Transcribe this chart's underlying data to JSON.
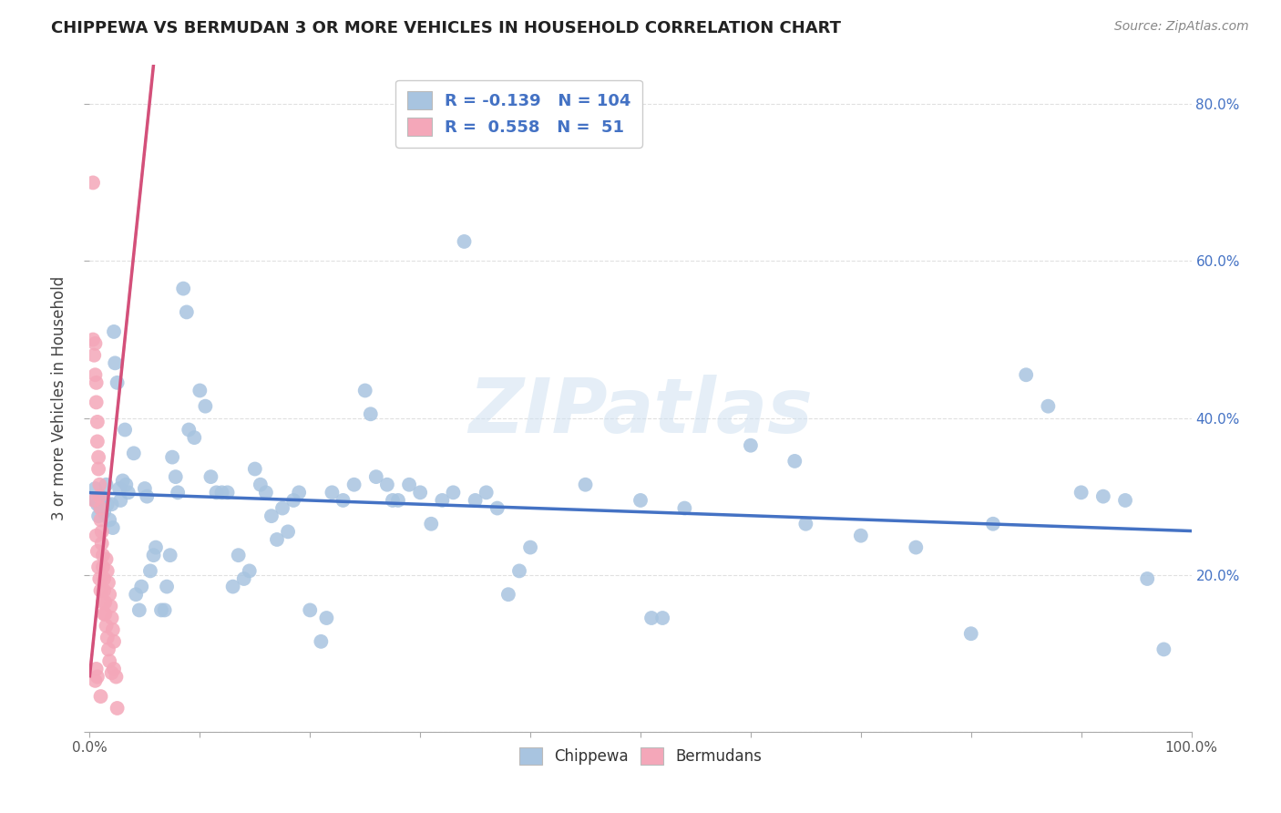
{
  "title": "CHIPPEWA VS BERMUDAN 3 OR MORE VEHICLES IN HOUSEHOLD CORRELATION CHART",
  "source": "Source: ZipAtlas.com",
  "ylabel": "3 or more Vehicles in Household",
  "watermark": "ZIPatlas",
  "legend_chippewa_r": "-0.139",
  "legend_chippewa_n": "104",
  "legend_bermudan_r": "0.558",
  "legend_bermudan_n": "51",
  "chippewa_color": "#a8c4e0",
  "bermudan_color": "#f4a7b9",
  "chippewa_line_color": "#4472c4",
  "bermudan_line_color": "#d4507a",
  "chippewa_scatter": [
    [
      0.005,
      0.295
    ],
    [
      0.005,
      0.31
    ],
    [
      0.007,
      0.29
    ],
    [
      0.008,
      0.275
    ],
    [
      0.01,
      0.3
    ],
    [
      0.01,
      0.285
    ],
    [
      0.012,
      0.295
    ],
    [
      0.013,
      0.28
    ],
    [
      0.015,
      0.315
    ],
    [
      0.016,
      0.29
    ],
    [
      0.018,
      0.27
    ],
    [
      0.02,
      0.29
    ],
    [
      0.021,
      0.26
    ],
    [
      0.022,
      0.51
    ],
    [
      0.023,
      0.47
    ],
    [
      0.025,
      0.445
    ],
    [
      0.027,
      0.31
    ],
    [
      0.028,
      0.295
    ],
    [
      0.03,
      0.32
    ],
    [
      0.032,
      0.385
    ],
    [
      0.033,
      0.315
    ],
    [
      0.035,
      0.305
    ],
    [
      0.04,
      0.355
    ],
    [
      0.042,
      0.175
    ],
    [
      0.045,
      0.155
    ],
    [
      0.047,
      0.185
    ],
    [
      0.05,
      0.31
    ],
    [
      0.052,
      0.3
    ],
    [
      0.055,
      0.205
    ],
    [
      0.058,
      0.225
    ],
    [
      0.06,
      0.235
    ],
    [
      0.065,
      0.155
    ],
    [
      0.068,
      0.155
    ],
    [
      0.07,
      0.185
    ],
    [
      0.073,
      0.225
    ],
    [
      0.075,
      0.35
    ],
    [
      0.078,
      0.325
    ],
    [
      0.08,
      0.305
    ],
    [
      0.085,
      0.565
    ],
    [
      0.088,
      0.535
    ],
    [
      0.09,
      0.385
    ],
    [
      0.095,
      0.375
    ],
    [
      0.1,
      0.435
    ],
    [
      0.105,
      0.415
    ],
    [
      0.11,
      0.325
    ],
    [
      0.115,
      0.305
    ],
    [
      0.12,
      0.305
    ],
    [
      0.125,
      0.305
    ],
    [
      0.13,
      0.185
    ],
    [
      0.135,
      0.225
    ],
    [
      0.14,
      0.195
    ],
    [
      0.145,
      0.205
    ],
    [
      0.15,
      0.335
    ],
    [
      0.155,
      0.315
    ],
    [
      0.16,
      0.305
    ],
    [
      0.165,
      0.275
    ],
    [
      0.17,
      0.245
    ],
    [
      0.175,
      0.285
    ],
    [
      0.18,
      0.255
    ],
    [
      0.185,
      0.295
    ],
    [
      0.19,
      0.305
    ],
    [
      0.2,
      0.155
    ],
    [
      0.21,
      0.115
    ],
    [
      0.215,
      0.145
    ],
    [
      0.22,
      0.305
    ],
    [
      0.23,
      0.295
    ],
    [
      0.24,
      0.315
    ],
    [
      0.25,
      0.435
    ],
    [
      0.255,
      0.405
    ],
    [
      0.26,
      0.325
    ],
    [
      0.27,
      0.315
    ],
    [
      0.275,
      0.295
    ],
    [
      0.28,
      0.295
    ],
    [
      0.29,
      0.315
    ],
    [
      0.3,
      0.305
    ],
    [
      0.31,
      0.265
    ],
    [
      0.32,
      0.295
    ],
    [
      0.33,
      0.305
    ],
    [
      0.34,
      0.625
    ],
    [
      0.35,
      0.295
    ],
    [
      0.36,
      0.305
    ],
    [
      0.37,
      0.285
    ],
    [
      0.38,
      0.175
    ],
    [
      0.39,
      0.205
    ],
    [
      0.4,
      0.235
    ],
    [
      0.45,
      0.315
    ],
    [
      0.5,
      0.295
    ],
    [
      0.51,
      0.145
    ],
    [
      0.52,
      0.145
    ],
    [
      0.54,
      0.285
    ],
    [
      0.6,
      0.365
    ],
    [
      0.64,
      0.345
    ],
    [
      0.65,
      0.265
    ],
    [
      0.7,
      0.25
    ],
    [
      0.75,
      0.235
    ],
    [
      0.8,
      0.125
    ],
    [
      0.82,
      0.265
    ],
    [
      0.85,
      0.455
    ],
    [
      0.87,
      0.415
    ],
    [
      0.9,
      0.305
    ],
    [
      0.92,
      0.3
    ],
    [
      0.94,
      0.295
    ],
    [
      0.96,
      0.195
    ],
    [
      0.975,
      0.105
    ]
  ],
  "bermudan_scatter": [
    [
      0.005,
      0.495
    ],
    [
      0.005,
      0.455
    ],
    [
      0.006,
      0.445
    ],
    [
      0.006,
      0.42
    ],
    [
      0.007,
      0.395
    ],
    [
      0.007,
      0.37
    ],
    [
      0.008,
      0.35
    ],
    [
      0.008,
      0.335
    ],
    [
      0.009,
      0.315
    ],
    [
      0.009,
      0.3
    ],
    [
      0.01,
      0.285
    ],
    [
      0.01,
      0.27
    ],
    [
      0.011,
      0.255
    ],
    [
      0.011,
      0.24
    ],
    [
      0.012,
      0.225
    ],
    [
      0.012,
      0.21
    ],
    [
      0.013,
      0.195
    ],
    [
      0.013,
      0.18
    ],
    [
      0.014,
      0.165
    ],
    [
      0.014,
      0.15
    ],
    [
      0.015,
      0.22
    ],
    [
      0.016,
      0.205
    ],
    [
      0.017,
      0.19
    ],
    [
      0.018,
      0.175
    ],
    [
      0.019,
      0.16
    ],
    [
      0.02,
      0.145
    ],
    [
      0.021,
      0.13
    ],
    [
      0.022,
      0.115
    ],
    [
      0.003,
      0.7
    ],
    [
      0.003,
      0.5
    ],
    [
      0.004,
      0.48
    ],
    [
      0.004,
      0.295
    ],
    [
      0.006,
      0.25
    ],
    [
      0.007,
      0.23
    ],
    [
      0.008,
      0.21
    ],
    [
      0.009,
      0.195
    ],
    [
      0.01,
      0.18
    ],
    [
      0.012,
      0.165
    ],
    [
      0.013,
      0.15
    ],
    [
      0.015,
      0.135
    ],
    [
      0.016,
      0.12
    ],
    [
      0.017,
      0.105
    ],
    [
      0.018,
      0.09
    ],
    [
      0.02,
      0.075
    ],
    [
      0.022,
      0.08
    ],
    [
      0.024,
      0.07
    ],
    [
      0.005,
      0.065
    ],
    [
      0.006,
      0.08
    ],
    [
      0.007,
      0.07
    ],
    [
      0.01,
      0.045
    ],
    [
      0.025,
      0.03
    ]
  ],
  "xlim": [
    0.0,
    1.0
  ],
  "ylim": [
    0.0,
    0.85
  ],
  "x_ticks": [
    0.0,
    0.1,
    0.2,
    0.3,
    0.4,
    0.5,
    0.6,
    0.7,
    0.8,
    0.9,
    1.0
  ],
  "x_tick_labels_show": [
    "0.0%",
    "",
    "",
    "",
    "",
    "",
    "",
    "",
    "",
    "",
    "100.0%"
  ],
  "y_ticks": [
    0.0,
    0.2,
    0.4,
    0.6,
    0.8
  ],
  "y_tick_labels_right": [
    "",
    "20.0%",
    "40.0%",
    "60.0%",
    "80.0%"
  ],
  "grid_color": "#dddddd",
  "background_color": "#ffffff",
  "legend_fontsize": 13,
  "title_fontsize": 13,
  "source_fontsize": 10,
  "watermark_fontsize": 60,
  "watermark_color": "#ccdff0",
  "watermark_alpha": 0.5
}
